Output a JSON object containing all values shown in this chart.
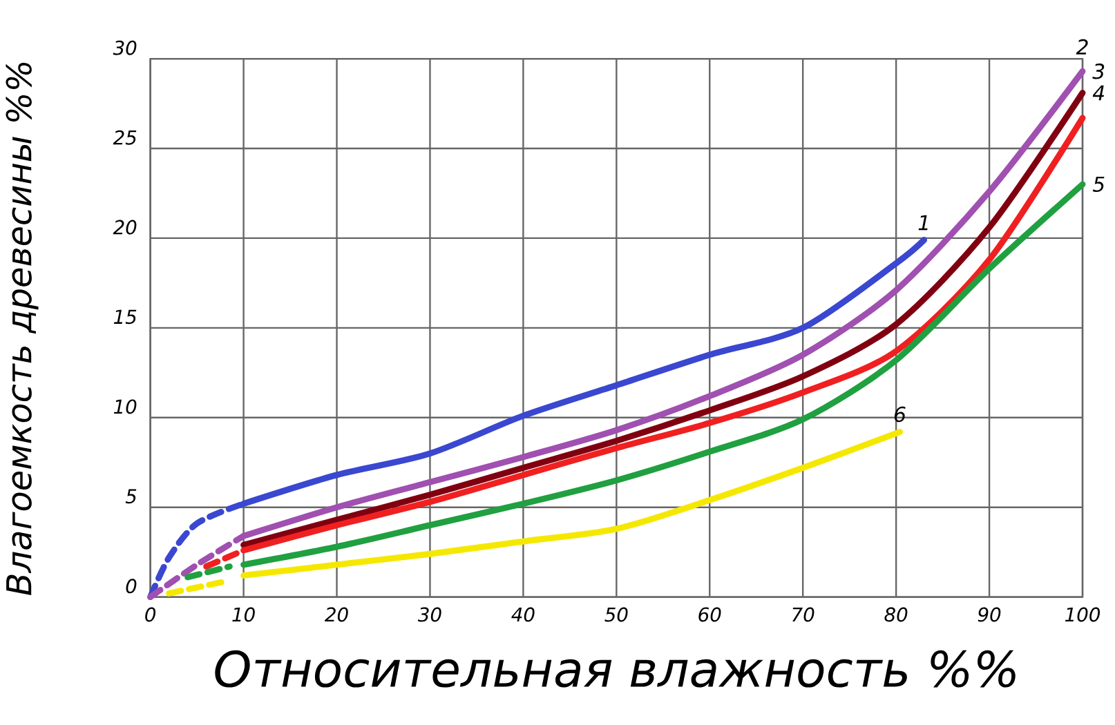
{
  "chart_data": {
    "type": "line",
    "xlabel": "Относительная влажность %%",
    "ylabel": "Влагоемкость древесины %%",
    "xlim": [
      0,
      100
    ],
    "ylim": [
      0,
      30
    ],
    "xticks": [
      0,
      10,
      20,
      30,
      40,
      50,
      60,
      70,
      80,
      90,
      100
    ],
    "yticks": [
      0,
      5,
      10,
      15,
      20,
      25,
      30
    ],
    "grid": true,
    "annotations": [
      "2"
    ],
    "series": [
      {
        "color": "#3a47d0",
        "line_style": "dashed",
        "x": [
          0,
          2,
          5,
          10
        ],
        "values": [
          0,
          2.2,
          4.1,
          5.2
        ]
      },
      {
        "name": "1",
        "color": "#3a47d0",
        "x": [
          10,
          20,
          30,
          40,
          50,
          60,
          70,
          80,
          83
        ],
        "values": [
          5.2,
          6.8,
          8.0,
          10.1,
          11.8,
          13.5,
          15.0,
          18.6,
          19.9
        ]
      },
      {
        "color": "#a050b0",
        "line_style": "dashed",
        "x": [
          0,
          5,
          10
        ],
        "values": [
          0,
          1.8,
          3.4
        ]
      },
      {
        "name": "3",
        "color": "#a050b0",
        "x": [
          10,
          20,
          30,
          40,
          50,
          60,
          70,
          80,
          90,
          100
        ],
        "values": [
          3.4,
          5.0,
          6.4,
          7.8,
          9.3,
          11.2,
          13.5,
          17.1,
          22.6,
          29.3
        ]
      },
      {
        "name": "4",
        "color": "#800010",
        "x": [
          10,
          20,
          30,
          40,
          50,
          60,
          70,
          80,
          90,
          100
        ],
        "values": [
          2.9,
          4.3,
          5.7,
          7.2,
          8.7,
          10.4,
          12.3,
          15.2,
          20.6,
          28.1
        ]
      },
      {
        "color": "#f02020",
        "line_style": "dashed",
        "x": [
          6,
          10
        ],
        "values": [
          1.7,
          2.6
        ]
      },
      {
        "color": "#f02020",
        "x": [
          10,
          20,
          30,
          40,
          50,
          60,
          70,
          80,
          90,
          100
        ],
        "values": [
          2.6,
          4.0,
          5.3,
          6.8,
          8.3,
          9.7,
          11.4,
          13.7,
          18.8,
          26.7
        ]
      },
      {
        "color": "#20a040",
        "line_style": "dashed",
        "x": [
          4,
          8.5
        ],
        "values": [
          1.1,
          1.7
        ]
      },
      {
        "name": "5",
        "color": "#20a040",
        "x": [
          10,
          20,
          30,
          40,
          50,
          60,
          70,
          80,
          90,
          100
        ],
        "values": [
          1.8,
          2.8,
          4.0,
          5.2,
          6.5,
          8.1,
          9.9,
          13.2,
          18.3,
          23.0
        ]
      },
      {
        "color": "#f5e800",
        "line_style": "dashed",
        "x": [
          2,
          8.3
        ],
        "values": [
          0.2,
          0.9
        ]
      },
      {
        "name": "6",
        "color": "#f5e800",
        "x": [
          10,
          20,
          30,
          40,
          50,
          60,
          70,
          80.4
        ],
        "values": [
          1.2,
          1.8,
          2.4,
          3.1,
          3.8,
          5.4,
          7.2,
          9.2
        ]
      }
    ]
  }
}
